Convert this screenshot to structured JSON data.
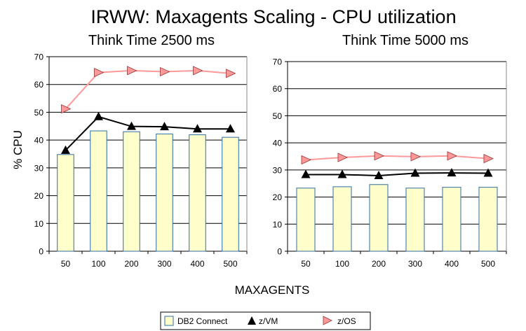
{
  "title": "IRWW: Maxagents Scaling - CPU utilization",
  "ylabel": "% CPU",
  "xlabel": "MAXAGENTS",
  "legend": [
    {
      "label": "DB2 Connect",
      "marker": "bar"
    },
    {
      "label": "z/VM",
      "marker": "triangle-up"
    },
    {
      "label": "z/OS",
      "marker": "triangle-right"
    }
  ],
  "colors": {
    "bar_fill": "#ffffcc",
    "bar_stroke": "#2e6da4",
    "zvm": "#000000",
    "zos_line": "#ff9999",
    "zos_marker": "#ff9999",
    "zos_marker_stroke": "#993333",
    "grid": "#000000"
  },
  "chart_data": [
    {
      "type": "bar",
      "subtitle": "Think Time 2500  ms",
      "categories": [
        "50",
        "100",
        "200",
        "300",
        "400",
        "500"
      ],
      "ylim": [
        0,
        70
      ],
      "yticks": [
        0,
        10,
        20,
        30,
        40,
        50,
        60,
        70
      ],
      "grid": true,
      "series": [
        {
          "name": "DB2 Connect",
          "kind": "bar",
          "values": [
            34.8,
            43.3,
            43.0,
            42.2,
            41.9,
            41.0
          ]
        },
        {
          "name": "z/VM",
          "kind": "line",
          "values": [
            36.3,
            48.4,
            44.9,
            44.8,
            44.0,
            44.0
          ]
        },
        {
          "name": "z/OS",
          "kind": "line",
          "values": [
            51.2,
            64.3,
            65.0,
            64.6,
            65.0,
            64.0
          ]
        }
      ]
    },
    {
      "type": "bar",
      "subtitle": "Think Time 5000 ms",
      "categories": [
        "50",
        "100",
        "200",
        "300",
        "400",
        "500"
      ],
      "ylim": [
        0,
        70
      ],
      "yticks": [
        0,
        10,
        20,
        30,
        40,
        50,
        60,
        70
      ],
      "grid": true,
      "series": [
        {
          "name": "DB2 Connect",
          "kind": "bar",
          "values": [
            23.3,
            23.8,
            24.6,
            23.3,
            23.6,
            23.6
          ]
        },
        {
          "name": "z/VM",
          "kind": "line",
          "values": [
            28.3,
            28.3,
            27.9,
            28.8,
            28.9,
            28.8
          ]
        },
        {
          "name": "z/OS",
          "kind": "line",
          "values": [
            33.7,
            34.6,
            35.2,
            34.9,
            35.2,
            34.2
          ]
        }
      ]
    }
  ]
}
